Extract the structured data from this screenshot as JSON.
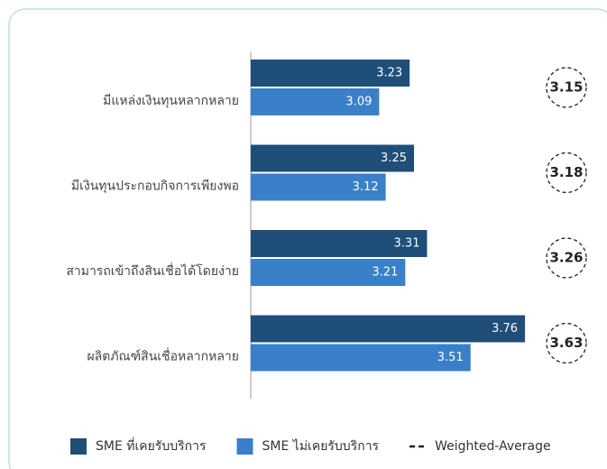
{
  "chart_data": {
    "type": "bar",
    "orientation": "horizontal",
    "categories": [
      "มีแหล่งเงินทุนหลากหลาย",
      "มีเงินทุนประกอบกิจการเพียงพอ",
      "สามารถเข้าถึงสินเชื่อได้โดยง่าย",
      "ผลิตภัณฑ์สินเชื่อหลากหลาย"
    ],
    "series": [
      {
        "name": "SME ที่เคยรับบริการ",
        "color": "#1f4e79",
        "values": [
          3.23,
          3.25,
          3.31,
          3.76
        ]
      },
      {
        "name": "SME ไม่เคยรับบริการ",
        "color": "#3a80c8",
        "values": [
          3.09,
          3.12,
          3.21,
          3.51
        ]
      },
      {
        "name": "Weighted-Average",
        "color": "#222222",
        "style": "dashed-circle",
        "values": [
          3.15,
          3.18,
          3.26,
          3.63
        ]
      }
    ],
    "xlim": [
      2.5,
      4.0
    ]
  }
}
